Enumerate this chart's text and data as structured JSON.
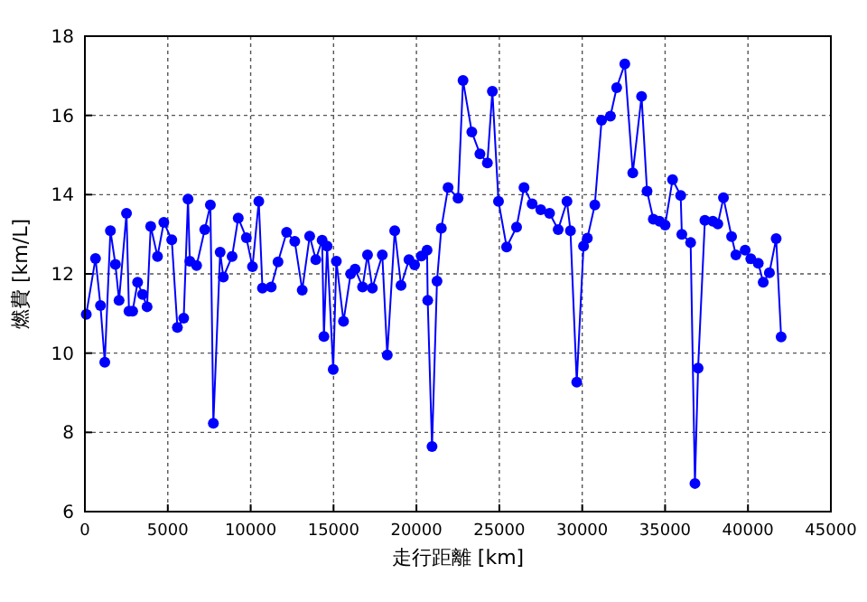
{
  "chart_data": {
    "type": "line",
    "xlabel": "走行距離 [km]",
    "ylabel": "燃費 [km/L]",
    "xlim": [
      0,
      45000
    ],
    "xticks": [
      0,
      5000,
      10000,
      15000,
      20000,
      25000,
      30000,
      35000,
      40000,
      45000
    ],
    "ylim": [
      6,
      18
    ],
    "yticks": [
      6,
      8,
      10,
      12,
      14,
      16,
      18
    ],
    "grid": true,
    "marker": "circle",
    "line_style": "solid",
    "x": [
      84,
      640,
      940,
      1200,
      1540,
      1840,
      2060,
      2510,
      2660,
      2880,
      3180,
      3480,
      3750,
      3970,
      4380,
      4760,
      5240,
      5580,
      5960,
      6220,
      6330,
      6740,
      7230,
      7570,
      7750,
      8160,
      8350,
      8880,
      9250,
      9740,
      10110,
      10490,
      10710,
      11240,
      11650,
      12170,
      12660,
      13110,
      13560,
      13930,
      14310,
      14420,
      14610,
      14980,
      15170,
      15600,
      16030,
      16300,
      16750,
      17050,
      17340,
      17940,
      18240,
      18690,
      19070,
      19550,
      19890,
      20300,
      20640,
      20680,
      20940,
      21240,
      21500,
      21910,
      22510,
      22810,
      23340,
      23830,
      24280,
      24580,
      24950,
      25440,
      26040,
      26490,
      26980,
      27500,
      28030,
      28550,
      29080,
      29290,
      29670,
      30080,
      30310,
      30760,
      31170,
      31700,
      32080,
      32570,
      33050,
      33580,
      33910,
      34290,
      34660,
      35000,
      35450,
      35940,
      36010,
      36540,
      36800,
      36990,
      37400,
      37880,
      38180,
      38520,
      39010,
      39270,
      39830,
      40170,
      40620,
      40920,
      41290,
      41700,
      42000
    ],
    "series": [
      {
        "color": "#0000ff",
        "values": [
          10.98,
          12.39,
          11.2,
          9.77,
          13.09,
          12.24,
          11.33,
          13.53,
          11.06,
          11.06,
          11.79,
          11.48,
          11.17,
          13.2,
          12.44,
          13.3,
          12.86,
          10.65,
          10.88,
          13.89,
          12.32,
          12.21,
          13.12,
          13.74,
          8.23,
          12.55,
          11.92,
          12.44,
          13.41,
          12.91,
          12.18,
          13.83,
          11.64,
          11.67,
          12.3,
          13.05,
          12.82,
          11.59,
          12.95,
          12.36,
          12.85,
          10.42,
          12.7,
          9.59,
          12.32,
          10.8,
          12.0,
          12.12,
          11.67,
          12.48,
          11.64,
          12.48,
          9.95,
          13.09,
          11.71,
          12.36,
          12.23,
          12.45,
          12.6,
          11.33,
          7.64,
          11.82,
          13.15,
          14.18,
          13.91,
          16.88,
          15.58,
          15.03,
          14.8,
          16.61,
          13.83,
          12.68,
          13.18,
          14.18,
          13.77,
          13.62,
          13.53,
          13.12,
          13.83,
          13.09,
          9.27,
          12.7,
          12.9,
          13.74,
          15.88,
          15.98,
          16.7,
          17.3,
          14.55,
          16.48,
          14.09,
          13.38,
          13.33,
          13.23,
          14.38,
          13.98,
          13.0,
          12.79,
          6.71,
          9.62,
          13.35,
          13.33,
          13.26,
          13.92,
          12.94,
          12.48,
          12.6,
          12.38,
          12.27,
          11.79,
          12.03,
          12.89,
          10.41
        ]
      }
    ]
  }
}
